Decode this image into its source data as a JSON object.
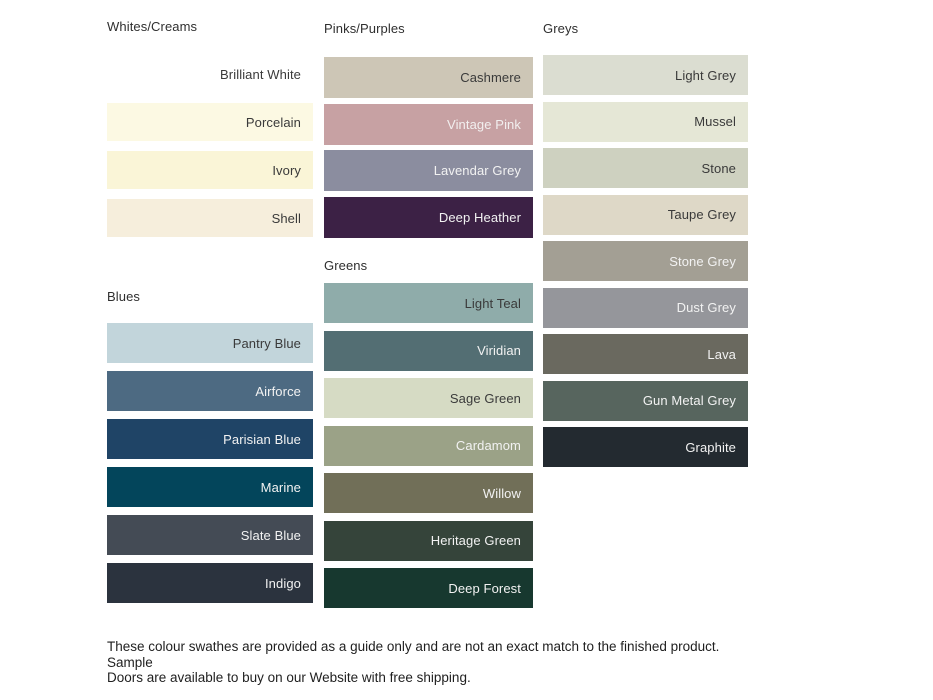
{
  "page": {
    "background": "#ffffff"
  },
  "sections": {
    "whites": {
      "title": "Whites/Creams",
      "swatches": [
        {
          "label": "Brilliant White",
          "color": "#FFFFFF",
          "text_color": "#3A3A3A"
        },
        {
          "label": "Porcelain",
          "color": "#FCF9E3",
          "text_color": "#3A3A3A"
        },
        {
          "label": "Ivory",
          "color": "#FAF5D7",
          "text_color": "#3A3A3A"
        },
        {
          "label": "Shell",
          "color": "#F6EEDC",
          "text_color": "#3A3A3A"
        }
      ]
    },
    "blues": {
      "title": "Blues",
      "swatches": [
        {
          "label": "Pantry Blue",
          "color": "#C2D5DB",
          "text_color": "#3A3A3A"
        },
        {
          "label": "Airforce",
          "color": "#4D6A82",
          "text_color": "#F2F2F2"
        },
        {
          "label": "Parisian Blue",
          "color": "#1F4466",
          "text_color": "#F2F2F2"
        },
        {
          "label": "Marine",
          "color": "#03455B",
          "text_color": "#F2F2F2"
        },
        {
          "label": "Slate Blue",
          "color": "#444B55",
          "text_color": "#F2F2F2"
        },
        {
          "label": "Indigo",
          "color": "#2B333E",
          "text_color": "#F2F2F2"
        }
      ]
    },
    "pinks": {
      "title": "Pinks/Purples",
      "swatches": [
        {
          "label": "Cashmere",
          "color": "#CDC6B6",
          "text_color": "#3A3A3A"
        },
        {
          "label": "Vintage Pink",
          "color": "#C7A1A3",
          "text_color": "#F2EFEF"
        },
        {
          "label": "Lavendar Grey",
          "color": "#8B8D9F",
          "text_color": "#F2F2F2"
        },
        {
          "label": "Deep Heather",
          "color": "#3C2145",
          "text_color": "#F2F2F2"
        }
      ]
    },
    "greens": {
      "title": "Greens",
      "swatches": [
        {
          "label": "Light Teal",
          "color": "#8FACAA",
          "text_color": "#3A3A3A"
        },
        {
          "label": "Viridian",
          "color": "#536E73",
          "text_color": "#F2F2F2"
        },
        {
          "label": "Sage Green",
          "color": "#D6DBC4",
          "text_color": "#3A3A3A"
        },
        {
          "label": "Cardamom",
          "color": "#9BA287",
          "text_color": "#F2F2F2"
        },
        {
          "label": "Willow",
          "color": "#716F58",
          "text_color": "#F2F2F2"
        },
        {
          "label": "Heritage Green",
          "color": "#35443A",
          "text_color": "#F2F2F2"
        },
        {
          "label": "Deep Forest",
          "color": "#17382F",
          "text_color": "#F2F2F2"
        }
      ]
    },
    "greys": {
      "title": "Greys",
      "swatches": [
        {
          "label": "Light Grey",
          "color": "#DBDDD1",
          "text_color": "#3A3A3A"
        },
        {
          "label": "Mussel",
          "color": "#E5E7D6",
          "text_color": "#3A3A3A"
        },
        {
          "label": "Stone",
          "color": "#CED1C0",
          "text_color": "#3A3A3A"
        },
        {
          "label": "Taupe Grey",
          "color": "#DED8C7",
          "text_color": "#3A3A3A"
        },
        {
          "label": "Stone Grey",
          "color": "#A39F94",
          "text_color": "#F2F2F2"
        },
        {
          "label": "Dust Grey",
          "color": "#95969B",
          "text_color": "#F2F2F2"
        },
        {
          "label": "Lava",
          "color": "#6A695F",
          "text_color": "#F2F2F2"
        },
        {
          "label": "Gun Metal Grey",
          "color": "#57655E",
          "text_color": "#F2F2F2"
        },
        {
          "label": "Graphite",
          "color": "#232A30",
          "text_color": "#F2F2F2"
        }
      ]
    }
  },
  "footer": {
    "line1": "These colour swathes are provided as a guide only and are not an exact match to the finished product.  Sample",
    "line2": "Doors are available to buy on our Website with free shipping."
  }
}
